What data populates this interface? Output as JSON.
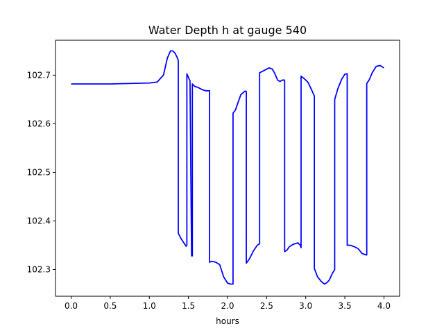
{
  "chart_data": {
    "type": "line",
    "title": "Water Depth h at gauge 540",
    "xlabel": "hours",
    "ylabel": "",
    "xlim": [
      -0.2,
      4.2
    ],
    "ylim": [
      102.245,
      102.772
    ],
    "xticks": [
      0.0,
      0.5,
      1.0,
      1.5,
      2.0,
      2.5,
      3.0,
      3.5,
      4.0
    ],
    "xtick_labels": [
      "0.0",
      "0.5",
      "1.0",
      "1.5",
      "2.0",
      "2.5",
      "3.0",
      "3.5",
      "4.0"
    ],
    "yticks": [
      102.3,
      102.4,
      102.5,
      102.6,
      102.7
    ],
    "ytick_labels": [
      "102.3",
      "102.4",
      "102.5",
      "102.6",
      "102.7"
    ],
    "grid": false,
    "line_color": "#0000ff",
    "series": [
      {
        "x": [
          0.0,
          0.5,
          1.0,
          1.1,
          1.18,
          1.23,
          1.27,
          1.3,
          1.33,
          1.36,
          1.37,
          1.37,
          1.4,
          1.47,
          1.48,
          1.48,
          1.52,
          1.54,
          1.54,
          1.55,
          1.55,
          1.58,
          1.62,
          1.68,
          1.72,
          1.77,
          1.77,
          1.8,
          1.85,
          1.9,
          1.95,
          2.0,
          2.04,
          2.07,
          2.07,
          2.1,
          2.13,
          2.17,
          2.22,
          2.24,
          2.24,
          2.28,
          2.33,
          2.38,
          2.41,
          2.41,
          2.47,
          2.53,
          2.57,
          2.6,
          2.64,
          2.67,
          2.7,
          2.73,
          2.73,
          2.76,
          2.79,
          2.84,
          2.9,
          2.93,
          2.94,
          2.94,
          2.98,
          3.03,
          3.08,
          3.11,
          3.11,
          3.15,
          3.2,
          3.24,
          3.27,
          3.3,
          3.34,
          3.37,
          3.37,
          3.41,
          3.46,
          3.5,
          3.53,
          3.53,
          3.57,
          3.62,
          3.67,
          3.72,
          3.77,
          3.78,
          3.78,
          3.81,
          3.85,
          3.9,
          3.95,
          4.0
        ],
        "y": [
          102.682,
          102.682,
          102.684,
          102.686,
          102.7,
          102.735,
          102.75,
          102.75,
          102.745,
          102.735,
          102.73,
          102.375,
          102.365,
          102.348,
          102.35,
          102.703,
          102.688,
          102.333,
          102.328,
          102.328,
          102.682,
          102.677,
          102.675,
          102.67,
          102.668,
          102.668,
          102.315,
          102.317,
          102.315,
          102.31,
          102.285,
          102.272,
          102.27,
          102.27,
          102.622,
          102.628,
          102.642,
          102.66,
          102.667,
          102.667,
          102.313,
          102.322,
          102.338,
          102.35,
          102.353,
          102.705,
          102.71,
          102.715,
          102.713,
          102.705,
          102.69,
          102.687,
          102.69,
          102.69,
          102.337,
          102.34,
          102.347,
          102.352,
          102.355,
          102.35,
          102.345,
          102.698,
          102.693,
          102.685,
          102.668,
          102.657,
          102.302,
          102.285,
          102.275,
          102.27,
          102.273,
          102.278,
          102.292,
          102.3,
          102.65,
          102.672,
          102.692,
          102.702,
          102.703,
          102.35,
          102.35,
          102.347,
          102.343,
          102.333,
          102.33,
          102.33,
          102.683,
          102.69,
          102.705,
          102.718,
          102.72,
          102.715
        ]
      }
    ]
  }
}
